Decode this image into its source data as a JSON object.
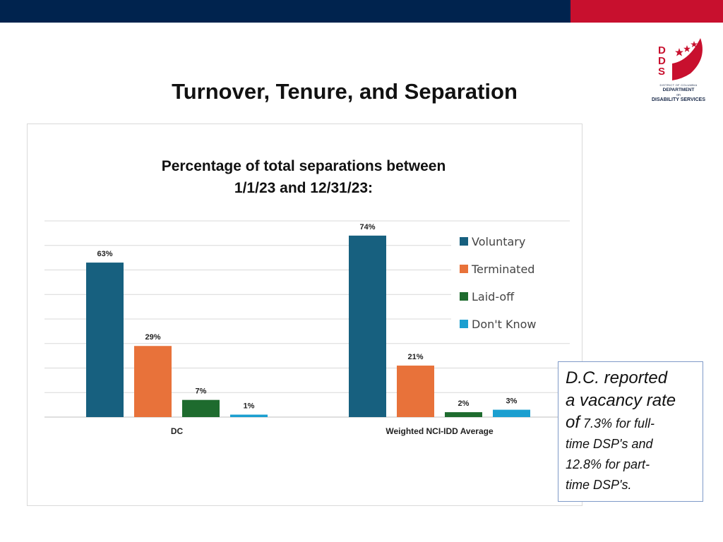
{
  "slide": {
    "title": "Turnover, Tenure, and Separation"
  },
  "logo": {
    "letters": [
      "D",
      "D",
      "S"
    ],
    "line1": "DISTRICT OF COLUMBIA",
    "line2": "DEPARTMENT",
    "line3": "on",
    "line4": "DISABILITY SERVICES",
    "brand_red": "#c8102e",
    "brand_navy": "#00234e"
  },
  "chart_data": {
    "type": "bar",
    "title_line1": "Percentage of total separations between",
    "title_line2": "1/1/23 and 12/31/23:",
    "categories": [
      "DC",
      "Weighted NCI-IDD Average"
    ],
    "series": [
      {
        "name": "Voluntary",
        "values": [
          63,
          74
        ],
        "labels": [
          "63%",
          "74%"
        ],
        "color": "#17607f"
      },
      {
        "name": "Terminated",
        "values": [
          29,
          21
        ],
        "labels": [
          "29%",
          "21%"
        ],
        "color": "#e8723a"
      },
      {
        "name": "Laid-off",
        "values": [
          7,
          2
        ],
        "labels": [
          "7%",
          "2%"
        ],
        "color": "#1e6b2e"
      },
      {
        "name": "Don't Know",
        "values": [
          1,
          3
        ],
        "labels": [
          "1%",
          "3%"
        ],
        "color": "#1b9fd0"
      }
    ],
    "ylim": [
      0,
      80
    ],
    "grid": true,
    "legend_position": "right"
  },
  "note": {
    "line1": "D.C. reported",
    "line2": "a vacancy rate",
    "line3_lead": "of",
    "line3_rest": " 7.3% for full-",
    "line4": "time DSP's and",
    "line5": "12.8%  for part-",
    "line6": "time DSP's."
  }
}
